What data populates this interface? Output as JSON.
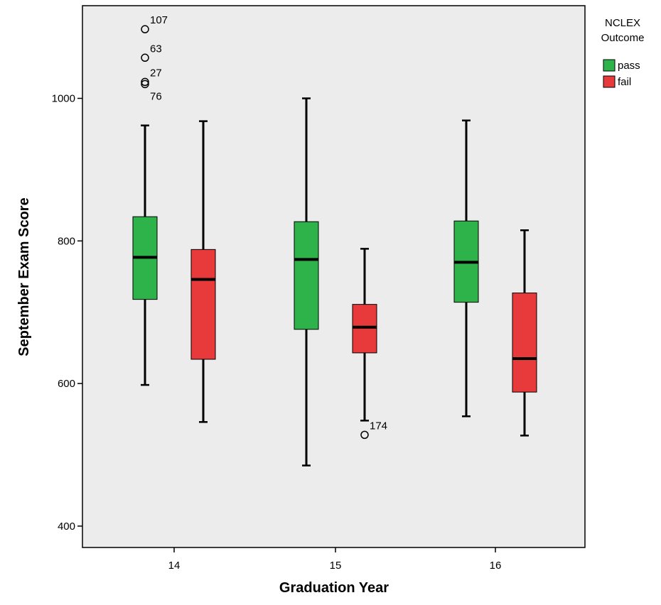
{
  "chart_data": {
    "type": "boxplot",
    "xlabel": "Graduation Year",
    "ylabel": "September Exam Score",
    "ylim": [
      370,
      1130
    ],
    "yticks": [
      400,
      600,
      800,
      1000
    ],
    "categories": [
      "14",
      "15",
      "16"
    ],
    "legend": {
      "title_lines": [
        "NCLEX",
        "Outcome"
      ],
      "position": "right"
    },
    "series": [
      {
        "name": "pass",
        "color": "#2db34a",
        "boxes": [
          {
            "category": "14",
            "min": 598,
            "q1": 718,
            "median": 777,
            "q3": 834,
            "max": 962,
            "outliers": [
              {
                "value": 1097,
                "label": "107"
              },
              {
                "value": 1057,
                "label": "63"
              },
              {
                "value": 1023,
                "label": "27"
              },
              {
                "value": 1020,
                "label": "76"
              }
            ]
          },
          {
            "category": "15",
            "min": 485,
            "q1": 676,
            "median": 774,
            "q3": 827,
            "max": 1000,
            "outliers": []
          },
          {
            "category": "16",
            "min": 554,
            "q1": 714,
            "median": 770,
            "q3": 828,
            "max": 969,
            "outliers": []
          }
        ]
      },
      {
        "name": "fail",
        "color": "#e83a3a",
        "boxes": [
          {
            "category": "14",
            "min": 546,
            "q1": 634,
            "median": 746,
            "q3": 788,
            "max": 968,
            "outliers": []
          },
          {
            "category": "15",
            "min": 548,
            "q1": 643,
            "median": 679,
            "q3": 711,
            "max": 789,
            "outliers": [
              {
                "value": 528,
                "label": "174"
              }
            ]
          },
          {
            "category": "16",
            "min": 527,
            "q1": 588,
            "median": 635,
            "q3": 727,
            "max": 815,
            "outliers": []
          }
        ]
      }
    ]
  }
}
